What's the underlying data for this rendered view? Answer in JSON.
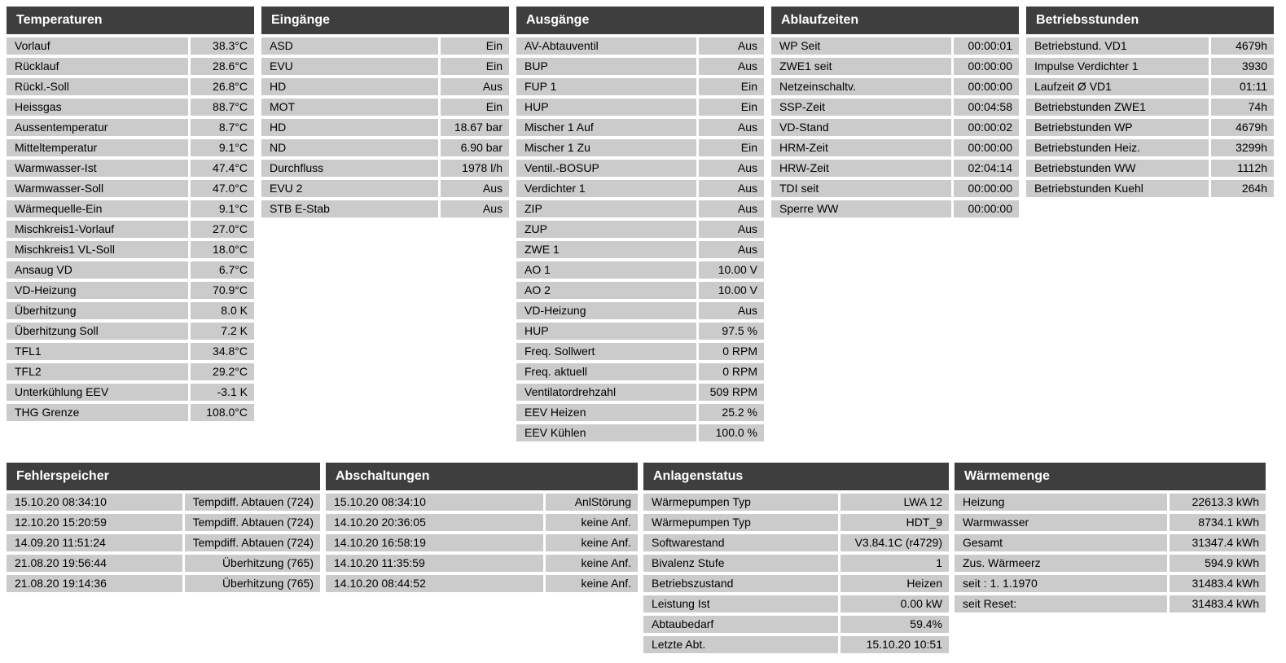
{
  "colors": {
    "page_bg": "#ffffff",
    "header_bg": "#3e3e3e",
    "header_text": "#ffffff",
    "row_bg": "#cbcbcb",
    "row_text": "#000000"
  },
  "panels": {
    "temperaturen": {
      "title": "Temperaturen",
      "rows": [
        {
          "label": "Vorlauf",
          "value": "38.3°C"
        },
        {
          "label": "Rücklauf",
          "value": "28.6°C"
        },
        {
          "label": "Rückl.-Soll",
          "value": "26.8°C"
        },
        {
          "label": "Heissgas",
          "value": "88.7°C"
        },
        {
          "label": "Aussentemperatur",
          "value": "8.7°C"
        },
        {
          "label": "Mitteltemperatur",
          "value": "9.1°C"
        },
        {
          "label": "Warmwasser-Ist",
          "value": "47.4°C"
        },
        {
          "label": "Warmwasser-Soll",
          "value": "47.0°C"
        },
        {
          "label": "Wärmequelle-Ein",
          "value": "9.1°C"
        },
        {
          "label": "Mischkreis1-Vorlauf",
          "value": "27.0°C"
        },
        {
          "label": "Mischkreis1 VL-Soll",
          "value": "18.0°C"
        },
        {
          "label": "Ansaug VD",
          "value": "6.7°C"
        },
        {
          "label": "VD-Heizung",
          "value": "70.9°C"
        },
        {
          "label": "Überhitzung",
          "value": "8.0 K"
        },
        {
          "label": "Überhitzung Soll",
          "value": "7.2 K"
        },
        {
          "label": "TFL1",
          "value": "34.8°C"
        },
        {
          "label": "TFL2",
          "value": "29.2°C"
        },
        {
          "label": "Unterkühlung EEV",
          "value": "-3.1 K"
        },
        {
          "label": "THG Grenze",
          "value": "108.0°C"
        }
      ]
    },
    "eingaenge": {
      "title": "Eingänge",
      "rows": [
        {
          "label": "ASD",
          "value": "Ein"
        },
        {
          "label": "EVU",
          "value": "Ein"
        },
        {
          "label": "HD",
          "value": "Aus"
        },
        {
          "label": "MOT",
          "value": "Ein"
        },
        {
          "label": "HD",
          "value": "18.67 bar"
        },
        {
          "label": "ND",
          "value": "6.90 bar"
        },
        {
          "label": "Durchfluss",
          "value": "1978 l/h"
        },
        {
          "label": "EVU 2",
          "value": "Aus"
        },
        {
          "label": "STB E-Stab",
          "value": "Aus"
        }
      ]
    },
    "ausgaenge": {
      "title": "Ausgänge",
      "rows": [
        {
          "label": "AV-Abtauventil",
          "value": "Aus"
        },
        {
          "label": "BUP",
          "value": "Aus"
        },
        {
          "label": "FUP 1",
          "value": "Ein"
        },
        {
          "label": "HUP",
          "value": "Ein"
        },
        {
          "label": "Mischer 1 Auf",
          "value": "Aus"
        },
        {
          "label": "Mischer 1 Zu",
          "value": "Ein"
        },
        {
          "label": "Ventil.-BOSUP",
          "value": "Aus"
        },
        {
          "label": "Verdichter 1",
          "value": "Aus"
        },
        {
          "label": "ZIP",
          "value": "Aus"
        },
        {
          "label": "ZUP",
          "value": "Aus"
        },
        {
          "label": "ZWE 1",
          "value": "Aus"
        },
        {
          "label": "AO 1",
          "value": "10.00 V"
        },
        {
          "label": "AO 2",
          "value": "10.00 V"
        },
        {
          "label": "VD-Heizung",
          "value": "Aus"
        },
        {
          "label": "HUP",
          "value": "97.5 %"
        },
        {
          "label": "Freq. Sollwert",
          "value": "0 RPM"
        },
        {
          "label": "Freq. aktuell",
          "value": "0 RPM"
        },
        {
          "label": "Ventilatordrehzahl",
          "value": "509 RPM"
        },
        {
          "label": "EEV Heizen",
          "value": "25.2 %"
        },
        {
          "label": "EEV Kühlen",
          "value": "100.0 %"
        }
      ]
    },
    "ablaufzeiten": {
      "title": "Ablaufzeiten",
      "rows": [
        {
          "label": "WP Seit",
          "value": "00:00:01"
        },
        {
          "label": "ZWE1 seit",
          "value": "00:00:00"
        },
        {
          "label": "Netzeinschaltv.",
          "value": "00:00:00"
        },
        {
          "label": "SSP-Zeit",
          "value": "00:04:58"
        },
        {
          "label": "VD-Stand",
          "value": "00:00:02"
        },
        {
          "label": "HRM-Zeit",
          "value": "00:00:00"
        },
        {
          "label": "HRW-Zeit",
          "value": "02:04:14"
        },
        {
          "label": "TDI seit",
          "value": "00:00:00"
        },
        {
          "label": "Sperre WW",
          "value": "00:00:00"
        }
      ]
    },
    "betriebsstunden": {
      "title": "Betriebsstunden",
      "rows": [
        {
          "label": "Betriebstund. VD1",
          "value": "4679h"
        },
        {
          "label": "Impulse Verdichter 1",
          "value": "3930"
        },
        {
          "label": "Laufzeit Ø VD1",
          "value": "01:11"
        },
        {
          "label": "Betriebstunden ZWE1",
          "value": "74h"
        },
        {
          "label": "Betriebstunden WP",
          "value": "4679h"
        },
        {
          "label": "Betriebstunden Heiz.",
          "value": "3299h"
        },
        {
          "label": "Betriebstunden WW",
          "value": "1112h"
        },
        {
          "label": "Betriebstunden Kuehl",
          "value": "264h"
        }
      ]
    },
    "fehlerspeicher": {
      "title": "Fehlerspeicher",
      "rows": [
        {
          "label": "15.10.20 08:34:10",
          "value": "Tempdiff. Abtauen (724)"
        },
        {
          "label": "12.10.20 15:20:59",
          "value": "Tempdiff. Abtauen (724)"
        },
        {
          "label": "14.09.20 11:51:24",
          "value": "Tempdiff. Abtauen (724)"
        },
        {
          "label": "21.08.20 19:56:44",
          "value": "Überhitzung (765)"
        },
        {
          "label": "21.08.20 19:14:36",
          "value": "Überhitzung (765)"
        }
      ]
    },
    "abschaltungen": {
      "title": "Abschaltungen",
      "rows": [
        {
          "label": "15.10.20 08:34:10",
          "value": "AnlStörung"
        },
        {
          "label": "14.10.20 20:36:05",
          "value": "keine Anf."
        },
        {
          "label": "14.10.20 16:58:19",
          "value": "keine Anf."
        },
        {
          "label": "14.10.20 11:35:59",
          "value": "keine Anf."
        },
        {
          "label": "14.10.20 08:44:52",
          "value": "keine Anf."
        }
      ]
    },
    "anlagenstatus": {
      "title": "Anlagenstatus",
      "rows": [
        {
          "label": "Wärmepumpen Typ",
          "value": "LWA 12"
        },
        {
          "label": "Wärmepumpen Typ",
          "value": "HDT_9"
        },
        {
          "label": "Softwarestand",
          "value": "V3.84.1C (r4729)"
        },
        {
          "label": "Bivalenz Stufe",
          "value": "1"
        },
        {
          "label": "Betriebszustand",
          "value": "Heizen"
        },
        {
          "label": "Leistung Ist",
          "value": "0.00 kW"
        },
        {
          "label": "Abtaubedarf",
          "value": "59.4%"
        },
        {
          "label": "Letzte Abt.",
          "value": "15.10.20 10:51"
        }
      ]
    },
    "waermemenge": {
      "title": "Wärmemenge",
      "rows": [
        {
          "label": "Heizung",
          "value": "22613.3 kWh"
        },
        {
          "label": "Warmwasser",
          "value": "8734.1 kWh"
        },
        {
          "label": "Gesamt",
          "value": "31347.4 kWh"
        },
        {
          "label": "Zus. Wärmeerz",
          "value": "594.9 kWh"
        },
        {
          "label": "seit : 1. 1.1970",
          "value": "31483.4 kWh"
        },
        {
          "label": "seit Reset:",
          "value": "31483.4 kWh"
        }
      ]
    }
  }
}
